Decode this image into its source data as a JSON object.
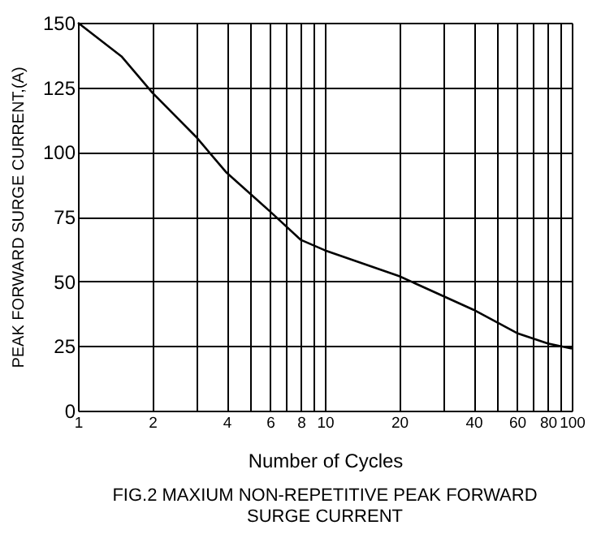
{
  "chart_data": {
    "type": "line",
    "title": "FIG.2 MAXIUM NON-REPETITIVE PEAK FORWARD\nSURGE CURRENT",
    "xlabel": "Number of Cycles",
    "ylabel": "PEAK FORWARD SURGE CURRENT,(A)",
    "x": [
      1,
      1.5,
      2,
      3,
      4,
      6,
      8,
      10,
      20,
      40,
      60,
      80,
      100
    ],
    "series": [
      {
        "color": "#000000",
        "values": [
          150,
          137,
          123,
          106,
          92,
          77,
          66,
          62,
          52,
          39,
          30,
          26,
          24
        ]
      }
    ],
    "log": "x",
    "xlim": [
      1,
      100
    ],
    "ylim": [
      0,
      150
    ],
    "xticks": [
      1,
      2,
      {
        "value": 3,
        "label": null
      },
      4,
      {
        "value": 5,
        "label": null
      },
      6,
      {
        "value": 7,
        "label": null
      },
      8,
      {
        "value": 9,
        "label": null
      },
      10,
      20,
      {
        "value": 30,
        "label": null
      },
      40,
      {
        "value": 50,
        "label": null
      },
      60,
      {
        "value": 70,
        "label": null
      },
      80,
      {
        "value": 90,
        "label": null
      },
      100
    ],
    "yticks": [
      0,
      25,
      50,
      75,
      100,
      125,
      150
    ],
    "grid": true,
    "marker": "none",
    "line_style": "solid"
  }
}
